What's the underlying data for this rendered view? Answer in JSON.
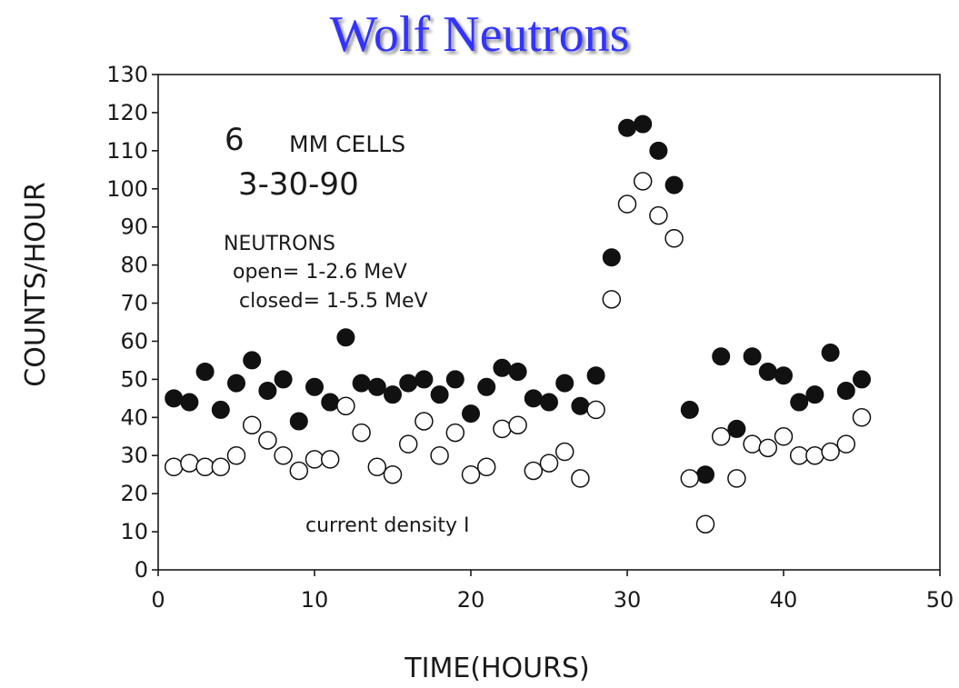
{
  "slide": {
    "title": "Wolf Neutrons"
  },
  "chart_data": {
    "type": "scatter",
    "xlabel": "TIME(HOURS)",
    "ylabel": "COUNTS/HOUR",
    "xlim": [
      0,
      50
    ],
    "ylim": [
      0,
      130
    ],
    "x_ticks": [
      0,
      10,
      20,
      30,
      40,
      50
    ],
    "y_ticks": [
      0,
      10,
      20,
      30,
      40,
      50,
      60,
      70,
      80,
      90,
      100,
      110,
      120,
      130
    ],
    "grid": false,
    "annotations": {
      "cell_count": "6",
      "cell_type": "MM CELLS",
      "date": "3-30-90",
      "neutrons_heading": "NEUTRONS",
      "open_range": "open= 1-2.6 MeV",
      "closed_range": "closed= 1-5.5 MeV",
      "current_density": "current density I"
    },
    "series": [
      {
        "marker": "filled",
        "color": "#111111",
        "points": [
          [
            1,
            45
          ],
          [
            2,
            44
          ],
          [
            3,
            52
          ],
          [
            4,
            42
          ],
          [
            5,
            49
          ],
          [
            6,
            55
          ],
          [
            7,
            47
          ],
          [
            8,
            50
          ],
          [
            9,
            39
          ],
          [
            10,
            48
          ],
          [
            11,
            44
          ],
          [
            12,
            61
          ],
          [
            13,
            49
          ],
          [
            14,
            48
          ],
          [
            15,
            46
          ],
          [
            16,
            49
          ],
          [
            17,
            50
          ],
          [
            18,
            46
          ],
          [
            19,
            50
          ],
          [
            20,
            41
          ],
          [
            21,
            48
          ],
          [
            22,
            53
          ],
          [
            23,
            52
          ],
          [
            24,
            45
          ],
          [
            25,
            44
          ],
          [
            26,
            49
          ],
          [
            27,
            43
          ],
          [
            28,
            51
          ],
          [
            29,
            82
          ],
          [
            30,
            116
          ],
          [
            31,
            117
          ],
          [
            32,
            110
          ],
          [
            33,
            101
          ],
          [
            34,
            42
          ],
          [
            35,
            25
          ],
          [
            36,
            56
          ],
          [
            37,
            37
          ],
          [
            38,
            56
          ],
          [
            39,
            52
          ],
          [
            40,
            51
          ],
          [
            41,
            44
          ],
          [
            42,
            46
          ],
          [
            43,
            57
          ],
          [
            44,
            47
          ],
          [
            45,
            50
          ]
        ]
      },
      {
        "marker": "open",
        "color": "#111111",
        "points": [
          [
            1,
            27
          ],
          [
            2,
            28
          ],
          [
            3,
            27
          ],
          [
            4,
            27
          ],
          [
            5,
            30
          ],
          [
            6,
            38
          ],
          [
            7,
            34
          ],
          [
            8,
            30
          ],
          [
            9,
            26
          ],
          [
            10,
            29
          ],
          [
            11,
            29
          ],
          [
            12,
            43
          ],
          [
            13,
            36
          ],
          [
            14,
            27
          ],
          [
            15,
            25
          ],
          [
            16,
            33
          ],
          [
            17,
            39
          ],
          [
            18,
            30
          ],
          [
            19,
            36
          ],
          [
            20,
            25
          ],
          [
            21,
            27
          ],
          [
            22,
            37
          ],
          [
            23,
            38
          ],
          [
            24,
            26
          ],
          [
            25,
            28
          ],
          [
            26,
            31
          ],
          [
            27,
            24
          ],
          [
            28,
            42
          ],
          [
            29,
            71
          ],
          [
            30,
            96
          ],
          [
            31,
            102
          ],
          [
            32,
            93
          ],
          [
            33,
            87
          ],
          [
            34,
            24
          ],
          [
            35,
            12
          ],
          [
            36,
            35
          ],
          [
            37,
            24
          ],
          [
            38,
            33
          ],
          [
            39,
            32
          ],
          [
            40,
            35
          ],
          [
            41,
            30
          ],
          [
            42,
            30
          ],
          [
            43,
            31
          ],
          [
            44,
            33
          ],
          [
            45,
            40
          ]
        ]
      }
    ]
  }
}
